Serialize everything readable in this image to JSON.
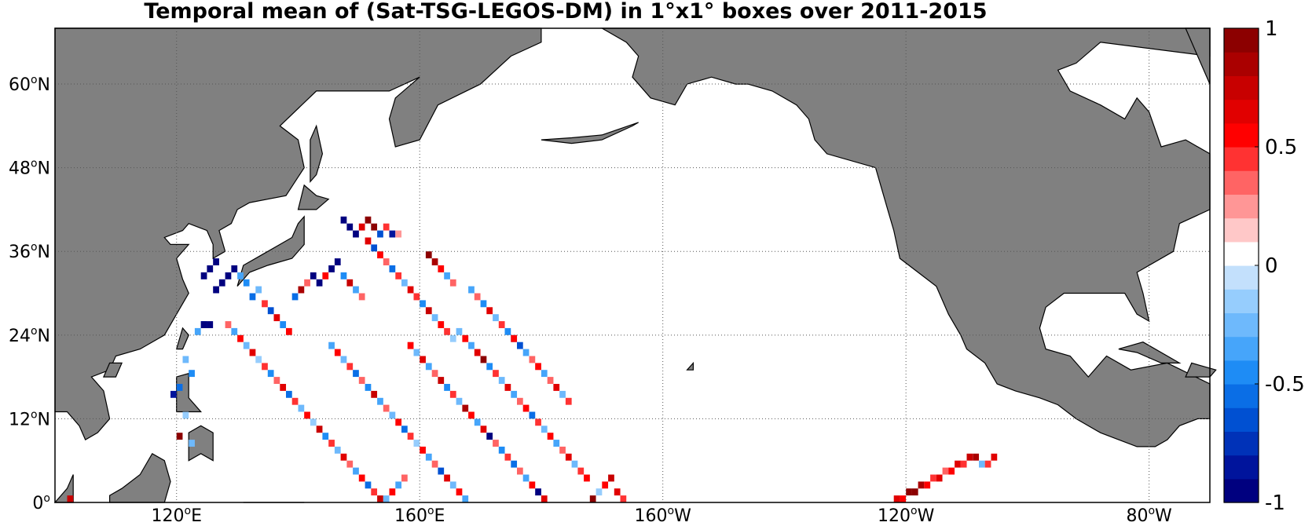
{
  "title": "Temporal mean of (Sat-TSG-LEGOS-DM) in 1°x1° boxes over 2011-2015",
  "map": {
    "projection": "equirectangular",
    "lon_range": [
      100,
      290
    ],
    "lat_range": [
      0,
      68
    ],
    "land_color": "#808080",
    "ocean_color": "#ffffff",
    "grid": "dotted",
    "lat_ticks": [
      {
        "value": 0,
        "deg": "0",
        "sup": "o",
        "hemi": ""
      },
      {
        "value": 12,
        "deg": "12",
        "sup": "o",
        "hemi": "N"
      },
      {
        "value": 24,
        "deg": "24",
        "sup": "o",
        "hemi": "N"
      },
      {
        "value": 36,
        "deg": "36",
        "sup": "o",
        "hemi": "N"
      },
      {
        "value": 48,
        "deg": "48",
        "sup": "o",
        "hemi": "N"
      },
      {
        "value": 60,
        "deg": "60",
        "sup": "o",
        "hemi": "N"
      }
    ],
    "lon_ticks": [
      {
        "value": 120,
        "deg": "120",
        "sup": "o",
        "hemi": "E"
      },
      {
        "value": 160,
        "deg": "160",
        "sup": "o",
        "hemi": "E"
      },
      {
        "value": 200,
        "deg": "160",
        "sup": "o",
        "hemi": "W"
      },
      {
        "value": 240,
        "deg": "120",
        "sup": "o",
        "hemi": "W"
      },
      {
        "value": 280,
        "deg": "80",
        "sup": "o",
        "hemi": "W"
      }
    ]
  },
  "colorbar": {
    "min": -1,
    "max": 1,
    "tick_labels": [
      {
        "value": 1,
        "text": "1"
      },
      {
        "value": 0.5,
        "text": "0.5"
      },
      {
        "value": 0,
        "text": "0"
      },
      {
        "value": -0.5,
        "text": "-0.5"
      },
      {
        "value": -1,
        "text": "-1"
      }
    ],
    "colors": [
      "#00007f",
      "#00149c",
      "#0032b8",
      "#0050d2",
      "#0a6ee6",
      "#1e8cf5",
      "#46a5fa",
      "#6eb9fc",
      "#96cdfd",
      "#c3e0fc",
      "#ffffff",
      "#ffc8c8",
      "#ff9696",
      "#ff6464",
      "#ff3232",
      "#ff0000",
      "#e10000",
      "#c80000",
      "#aa0000",
      "#8c0000"
    ]
  },
  "chart_data": {
    "type": "heatmap",
    "title": "Temporal mean of (Sat-TSG-LEGOS-DM) in 1°x1° boxes over 2011-2015",
    "xlabel": "",
    "ylabel": "",
    "units_note": "",
    "cell_size_deg": 1,
    "value_range": [
      -1,
      1
    ],
    "cells": [
      [
        102,
        0,
        0.7
      ],
      [
        119,
        15,
        -0.8
      ],
      [
        120,
        16,
        -0.6
      ],
      [
        121,
        20,
        -0.3
      ],
      [
        122,
        18,
        -0.5
      ],
      [
        123,
        24,
        -0.4
      ],
      [
        124,
        25,
        -0.6
      ],
      [
        120,
        9,
        0.9
      ],
      [
        121,
        12,
        -0.2
      ],
      [
        122,
        8,
        -0.3
      ],
      [
        124,
        32,
        -1
      ],
      [
        125,
        33,
        -1
      ],
      [
        126,
        34,
        -1
      ],
      [
        124,
        25,
        -1
      ],
      [
        125,
        25,
        -1
      ],
      [
        126,
        30,
        -1
      ],
      [
        127,
        31,
        -1
      ],
      [
        128,
        32,
        -1
      ],
      [
        129,
        33,
        -1
      ],
      [
        130,
        32,
        -0.4
      ],
      [
        131,
        31,
        -0.5
      ],
      [
        132,
        29,
        -0.6
      ],
      [
        133,
        30,
        -0.3
      ],
      [
        134,
        28,
        0.4
      ],
      [
        135,
        27,
        -0.7
      ],
      [
        136,
        26,
        0.6
      ],
      [
        137,
        25,
        -0.5
      ],
      [
        138,
        24,
        0.5
      ],
      [
        139,
        29,
        -0.6
      ],
      [
        140,
        30,
        0.8
      ],
      [
        141,
        31,
        0.3
      ],
      [
        142,
        32,
        -0.9
      ],
      [
        143,
        31,
        -1
      ],
      [
        144,
        32,
        0.5
      ],
      [
        145,
        33,
        -1
      ],
      [
        146,
        34,
        -1
      ],
      [
        147,
        32,
        -0.5
      ],
      [
        148,
        31,
        0.7
      ],
      [
        149,
        30,
        -0.4
      ],
      [
        150,
        29,
        0.3
      ],
      [
        147,
        40,
        -1
      ],
      [
        148,
        39,
        -1
      ],
      [
        149,
        38,
        -1
      ],
      [
        150,
        39,
        0.6
      ],
      [
        151,
        40,
        1
      ],
      [
        152,
        39,
        0.9
      ],
      [
        153,
        38,
        -0.7
      ],
      [
        154,
        39,
        0.4
      ],
      [
        155,
        38,
        -0.8
      ],
      [
        156,
        38,
        0.2
      ],
      [
        151,
        37,
        0.6
      ],
      [
        152,
        36,
        -0.7
      ],
      [
        153,
        35,
        0.5
      ],
      [
        154,
        34,
        0.3
      ],
      [
        155,
        33,
        -0.6
      ],
      [
        156,
        32,
        0.4
      ],
      [
        157,
        31,
        -0.3
      ],
      [
        158,
        30,
        0.6
      ],
      [
        159,
        29,
        0.4
      ],
      [
        160,
        28,
        -0.5
      ],
      [
        161,
        27,
        0.7
      ],
      [
        162,
        26,
        -0.3
      ],
      [
        163,
        25,
        0.5
      ],
      [
        164,
        24,
        0.4
      ],
      [
        165,
        23,
        -0.2
      ],
      [
        161,
        35,
        1
      ],
      [
        162,
        34,
        0.8
      ],
      [
        163,
        33,
        0.5
      ],
      [
        164,
        32,
        -0.4
      ],
      [
        165,
        31,
        0.3
      ],
      [
        128,
        25,
        0.3
      ],
      [
        129,
        24,
        -0.4
      ],
      [
        130,
        23,
        0.5
      ],
      [
        131,
        22,
        -0.3
      ],
      [
        132,
        21,
        0.6
      ],
      [
        133,
        20,
        -0.2
      ],
      [
        134,
        19,
        0.4
      ],
      [
        135,
        18,
        -0.5
      ],
      [
        136,
        17,
        0.3
      ],
      [
        137,
        16,
        0.6
      ],
      [
        138,
        15,
        -0.6
      ],
      [
        139,
        14,
        0.4
      ],
      [
        140,
        13,
        -0.3
      ],
      [
        141,
        12,
        0.5
      ],
      [
        142,
        11,
        -0.2
      ],
      [
        143,
        10,
        0.7
      ],
      [
        144,
        9,
        -0.5
      ],
      [
        145,
        8,
        0.4
      ],
      [
        146,
        7,
        -0.3
      ],
      [
        147,
        6,
        0.6
      ],
      [
        148,
        5,
        0.3
      ],
      [
        149,
        4,
        -0.4
      ],
      [
        150,
        3,
        0.5
      ],
      [
        151,
        2,
        -0.6
      ],
      [
        152,
        1,
        0.4
      ],
      [
        153,
        0,
        0.7
      ],
      [
        154,
        0,
        -0.3
      ],
      [
        155,
        1,
        0.5
      ],
      [
        156,
        2,
        -0.4
      ],
      [
        157,
        3,
        0.3
      ],
      [
        145,
        22,
        -0.4
      ],
      [
        146,
        21,
        0.5
      ],
      [
        147,
        20,
        -0.3
      ],
      [
        148,
        19,
        0.4
      ],
      [
        149,
        18,
        -0.6
      ],
      [
        150,
        17,
        0.3
      ],
      [
        151,
        16,
        -0.5
      ],
      [
        152,
        15,
        0.7
      ],
      [
        153,
        14,
        -0.4
      ],
      [
        154,
        13,
        0.3
      ],
      [
        155,
        12,
        -0.3
      ],
      [
        156,
        11,
        0.5
      ],
      [
        157,
        10,
        -0.6
      ],
      [
        158,
        9,
        0.4
      ],
      [
        159,
        8,
        -0.2
      ],
      [
        160,
        7,
        0.5
      ],
      [
        161,
        6,
        -0.4
      ],
      [
        162,
        5,
        0.3
      ],
      [
        163,
        4,
        -0.7
      ],
      [
        164,
        3,
        0.6
      ],
      [
        165,
        2,
        -0.3
      ],
      [
        166,
        1,
        0.5
      ],
      [
        167,
        0,
        -0.4
      ],
      [
        158,
        22,
        0.5
      ],
      [
        159,
        21,
        -0.3
      ],
      [
        160,
        20,
        0.6
      ],
      [
        161,
        19,
        -0.4
      ],
      [
        162,
        18,
        0.3
      ],
      [
        163,
        17,
        0.7
      ],
      [
        164,
        16,
        -0.5
      ],
      [
        165,
        15,
        0.4
      ],
      [
        166,
        14,
        -0.3
      ],
      [
        167,
        13,
        0.8
      ],
      [
        168,
        12,
        0.5
      ],
      [
        169,
        11,
        -0.4
      ],
      [
        170,
        10,
        0.6
      ],
      [
        171,
        9,
        -0.9
      ],
      [
        172,
        8,
        0.3
      ],
      [
        173,
        7,
        -0.5
      ],
      [
        174,
        6,
        0.4
      ],
      [
        175,
        5,
        -0.6
      ],
      [
        176,
        4,
        0.3
      ],
      [
        177,
        3,
        -0.4
      ],
      [
        178,
        2,
        0.5
      ],
      [
        179,
        1,
        -1
      ],
      [
        180,
        0,
        0.6
      ],
      [
        166,
        24,
        -0.3
      ],
      [
        167,
        23,
        0.5
      ],
      [
        168,
        22,
        -0.4
      ],
      [
        169,
        21,
        0.6
      ],
      [
        170,
        20,
        1
      ],
      [
        171,
        19,
        -0.5
      ],
      [
        172,
        18,
        0.4
      ],
      [
        173,
        17,
        -0.3
      ],
      [
        174,
        16,
        0.6
      ],
      [
        175,
        15,
        -0.4
      ],
      [
        176,
        14,
        0.3
      ],
      [
        177,
        13,
        0.5
      ],
      [
        178,
        12,
        -0.6
      ],
      [
        179,
        11,
        0.4
      ],
      [
        180,
        10,
        -0.3
      ],
      [
        181,
        9,
        0.5
      ],
      [
        182,
        8,
        -0.4
      ],
      [
        183,
        7,
        0.3
      ],
      [
        184,
        6,
        0.6
      ],
      [
        185,
        5,
        -0.3
      ],
      [
        186,
        4,
        0.4
      ],
      [
        187,
        3,
        0.5
      ],
      [
        188,
        0,
        0.9
      ],
      [
        189,
        1,
        -0.2
      ],
      [
        190,
        2,
        0.5
      ],
      [
        191,
        3,
        0.7
      ],
      [
        192,
        1,
        0.6
      ],
      [
        193,
        0,
        0.4
      ],
      [
        175,
        23,
        -0.6
      ],
      [
        176,
        22,
        -0.7
      ],
      [
        177,
        21,
        -0.4
      ],
      [
        178,
        20,
        0.3
      ],
      [
        179,
        19,
        0.5
      ],
      [
        180,
        18,
        -0.4
      ],
      [
        181,
        17,
        0.3
      ],
      [
        182,
        16,
        0.6
      ],
      [
        183,
        15,
        -0.3
      ],
      [
        184,
        14,
        0.4
      ],
      [
        168,
        30,
        -0.4
      ],
      [
        169,
        29,
        0.3
      ],
      [
        170,
        28,
        -0.5
      ],
      [
        171,
        27,
        0.6
      ],
      [
        172,
        26,
        -0.3
      ],
      [
        173,
        25,
        0.4
      ],
      [
        174,
        24,
        -0.5
      ],
      [
        175,
        23,
        0.5
      ],
      [
        238,
        0,
        0.6
      ],
      [
        239,
        0,
        0.5
      ],
      [
        240,
        1,
        0.9
      ],
      [
        241,
        1,
        1
      ],
      [
        242,
        2,
        0.8
      ],
      [
        243,
        2,
        0.5
      ],
      [
        244,
        3,
        0.4
      ],
      [
        245,
        3,
        0.6
      ],
      [
        246,
        4,
        0.3
      ],
      [
        247,
        4,
        0.5
      ],
      [
        248,
        5,
        0.6
      ],
      [
        249,
        5,
        0.4
      ],
      [
        250,
        6,
        0.7
      ],
      [
        251,
        6,
        0.8
      ],
      [
        252,
        5,
        -0.3
      ],
      [
        253,
        5,
        0.4
      ],
      [
        254,
        6,
        0.6
      ]
    ]
  }
}
